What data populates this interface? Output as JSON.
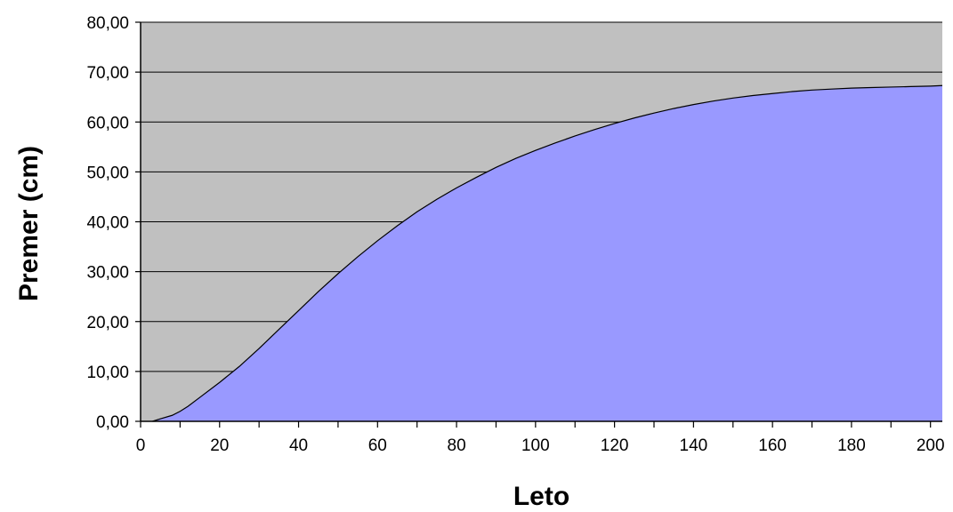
{
  "chart_data": {
    "type": "area",
    "title": "",
    "xlabel": "Leto",
    "ylabel": "Premer (cm)",
    "xlim": [
      0,
      203
    ],
    "ylim": [
      0,
      80
    ],
    "x_ticks": [
      0,
      10,
      20,
      30,
      40,
      50,
      60,
      70,
      80,
      90,
      100,
      110,
      120,
      130,
      140,
      150,
      160,
      170,
      180,
      190,
      200
    ],
    "x_tick_labels": [
      "0",
      "20",
      "40",
      "60",
      "80",
      "100",
      "120",
      "140",
      "160",
      "180",
      "200"
    ],
    "x_tick_label_values": [
      0,
      20,
      40,
      60,
      80,
      100,
      120,
      140,
      160,
      180,
      200
    ],
    "y_ticks": [
      0,
      10,
      20,
      30,
      40,
      50,
      60,
      70,
      80
    ],
    "y_tick_labels": [
      "0,00",
      "10,00",
      "20,00",
      "30,00",
      "40,00",
      "50,00",
      "60,00",
      "70,00",
      "80,00"
    ],
    "grid": true,
    "legend": "none",
    "colors": {
      "plot_background": "#c0c0c0",
      "area_fill": "#9999ff",
      "line": "#000000",
      "grid": "#000000"
    },
    "series": [
      {
        "x": [
          3,
          5,
          8,
          10,
          12,
          15,
          20,
          25,
          30,
          35,
          40,
          45,
          50,
          55,
          60,
          65,
          70,
          75,
          80,
          85,
          90,
          95,
          100,
          105,
          110,
          115,
          120,
          125,
          130,
          135,
          140,
          145,
          150,
          155,
          160,
          165,
          170,
          175,
          180,
          185,
          190,
          195,
          200,
          203
        ],
        "values": [
          0,
          0.5,
          1.2,
          2.0,
          3.0,
          4.8,
          7.8,
          11.0,
          14.6,
          18.4,
          22.2,
          26.0,
          29.6,
          33.0,
          36.2,
          39.2,
          42.0,
          44.5,
          46.8,
          48.9,
          50.9,
          52.7,
          54.3,
          55.8,
          57.2,
          58.5,
          59.7,
          60.8,
          61.8,
          62.7,
          63.5,
          64.2,
          64.8,
          65.3,
          65.7,
          66.1,
          66.4,
          66.6,
          66.8,
          66.9,
          67.0,
          67.1,
          67.2,
          67.3
        ]
      }
    ]
  }
}
